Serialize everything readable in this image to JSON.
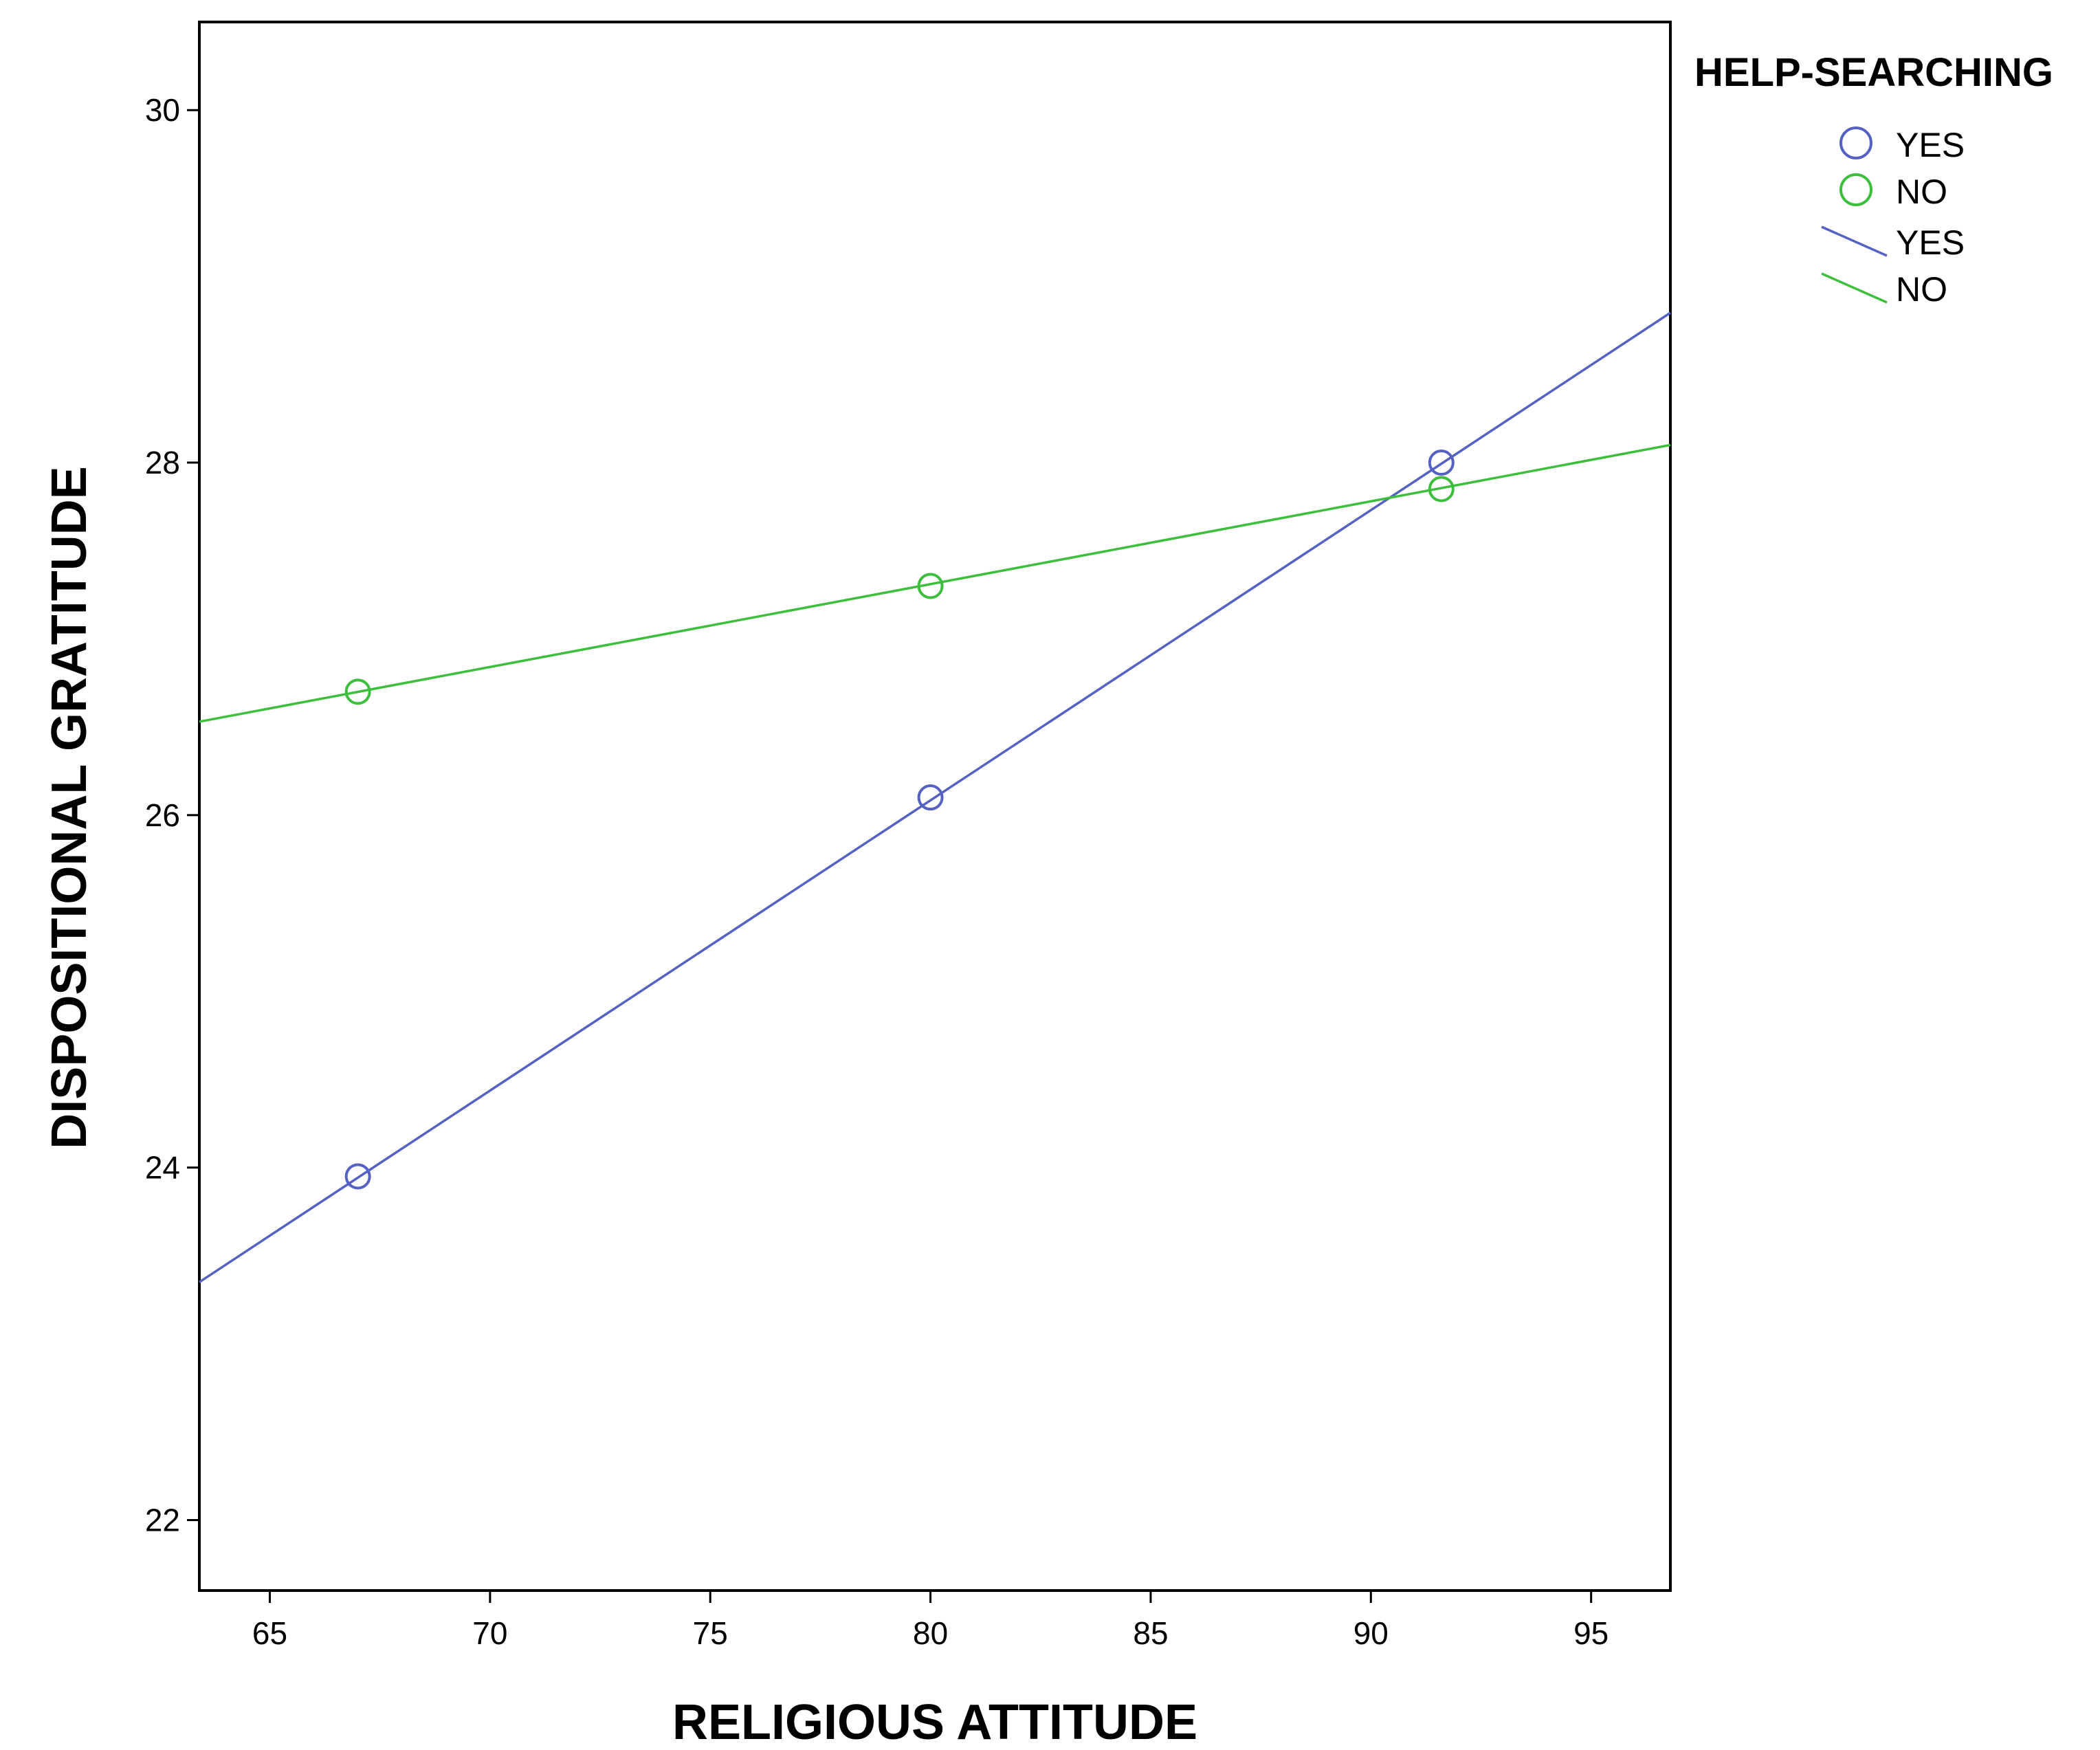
{
  "chart_data": {
    "type": "scatter",
    "title": "",
    "xlabel": "RELIGIOUS ATTITUDE",
    "ylabel": "DISPOSITIONAL GRATITUDE",
    "xlim": [
      63.4,
      96.8
    ],
    "ylim": [
      21.6,
      30.5
    ],
    "x_ticks": [
      65,
      70,
      75,
      80,
      85,
      90,
      95
    ],
    "y_ticks": [
      22,
      24,
      26,
      28,
      30
    ],
    "grid": false,
    "legend_title": "HELP-SEARCHING",
    "legend_position": "right",
    "series": [
      {
        "name": "YES",
        "color": "#5562c2",
        "points": [
          [
            67,
            23.95
          ],
          [
            80,
            26.1
          ],
          [
            91.6,
            28.0
          ]
        ],
        "fit_line": [
          [
            63.4,
            23.35
          ],
          [
            96.8,
            28.85
          ]
        ]
      },
      {
        "name": "NO",
        "color": "#3dbf3d",
        "points": [
          [
            67,
            26.7
          ],
          [
            80,
            27.3
          ],
          [
            91.6,
            27.85
          ]
        ],
        "fit_line": [
          [
            63.4,
            26.53
          ],
          [
            96.8,
            28.1
          ]
        ]
      }
    ],
    "legend_entries": [
      {
        "label": "YES",
        "kind": "marker",
        "color": "#5562c2"
      },
      {
        "label": "NO",
        "kind": "marker",
        "color": "#3dbf3d"
      },
      {
        "label": "YES",
        "kind": "line",
        "color": "#5562c2"
      },
      {
        "label": "NO",
        "kind": "line",
        "color": "#3dbf3d"
      }
    ]
  }
}
